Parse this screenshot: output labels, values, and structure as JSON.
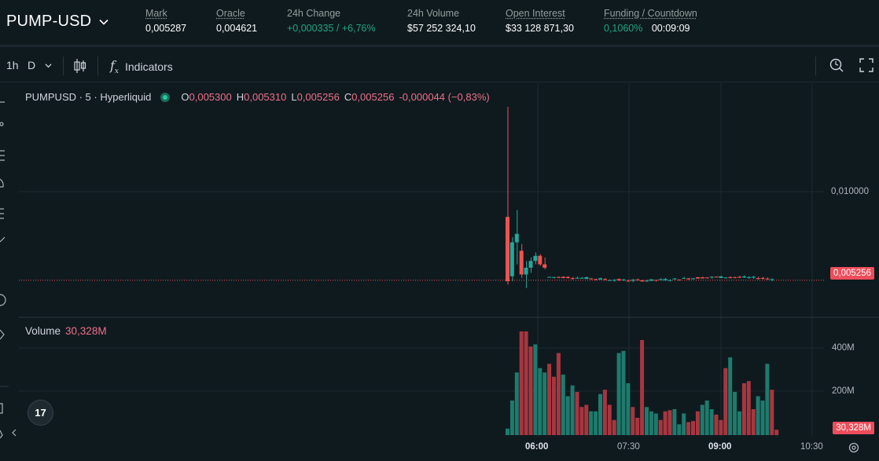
{
  "header": {
    "pair": "PUMP-USD",
    "stats": [
      {
        "label": "Mark",
        "value": "0,005287",
        "underline": true
      },
      {
        "label": "Oracle",
        "value": "0,004621",
        "underline": true
      },
      {
        "label": "24h Change",
        "value": "+0,000335 / +6,76%",
        "underline": false,
        "color": "green"
      },
      {
        "label": "24h Volume",
        "value": "$57 252 324,10",
        "underline": false
      },
      {
        "label": "Open Interest",
        "value": "$33 128 871,30",
        "underline": true
      },
      {
        "label": "Funding / Countdown",
        "funding": "0,1060%",
        "countdown": "00:09:09",
        "underline": true
      }
    ]
  },
  "toolbar": {
    "interval": "1h",
    "interval_menu": "D",
    "indicators_label": "Indicators"
  },
  "legend": {
    "symbol": "PUMPUSD · 5 · Hyperliquid",
    "o_label": "O",
    "o": "0,005300",
    "h_label": "H",
    "h": "0,005310",
    "l_label": "L",
    "l": "0,005256",
    "c_label": "C",
    "c": "0,005256",
    "change": "-0,000044 (−0,83%)"
  },
  "volume": {
    "label": "Volume",
    "value": "30,328M"
  },
  "axes": {
    "price_tick": "0,010000",
    "price_current": "0,005256",
    "vol_ticks": [
      "400M",
      "200M"
    ],
    "vol_current": "30,328M",
    "time_ticks": [
      "06:00",
      "07:30",
      "09:00",
      "10:30"
    ]
  },
  "logo_text": "17",
  "colors": {
    "up": "#26a69a",
    "down": "#ef5350",
    "up_vol": "#1e7b6d",
    "down_vol": "#a8363f",
    "grid": "#1d2a30"
  }
}
